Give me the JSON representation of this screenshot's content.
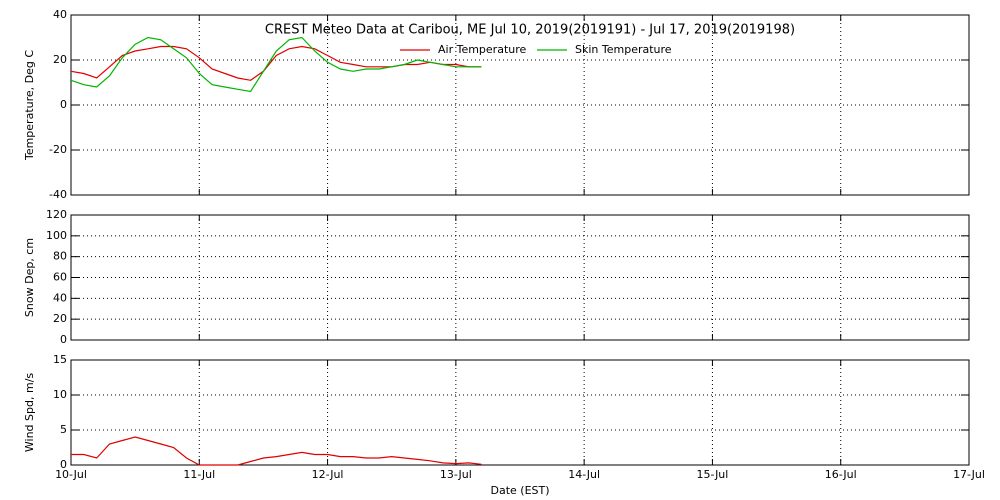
{
  "chart_data": [
    {
      "type": "line",
      "title": "CREST Meteo Data at Caribou, ME   Jul 10, 2019(2019191) - Jul 17, 2019(2019198)",
      "y_label": "Temperature, Deg C",
      "xlim": [
        0,
        7
      ],
      "ylim": [
        -40,
        40
      ],
      "yticks": [
        -40,
        -20,
        0,
        20,
        40
      ],
      "grid": true,
      "x": [
        0,
        0.1,
        0.2,
        0.3,
        0.4,
        0.5,
        0.6,
        0.7,
        0.8,
        0.9,
        1.0,
        1.1,
        1.2,
        1.3,
        1.4,
        1.5,
        1.6,
        1.7,
        1.8,
        1.9,
        2.0,
        2.1,
        2.2,
        2.3,
        2.4,
        2.5,
        2.6,
        2.7,
        2.8,
        2.9,
        3.0,
        3.1,
        3.2
      ],
      "series": [
        {
          "name": "Air Temperature",
          "color": "#e00000",
          "values": [
            15,
            14,
            12,
            17,
            22,
            24,
            25,
            26,
            26,
            25,
            21,
            16,
            14,
            12,
            11,
            15,
            22,
            25,
            26,
            25,
            22,
            19,
            18,
            17,
            17,
            17,
            18,
            18,
            19,
            18,
            18,
            17,
            17
          ]
        },
        {
          "name": "Skin Temperature",
          "color": "#00b400",
          "values": [
            11,
            9,
            8,
            13,
            21,
            27,
            30,
            29,
            25,
            21,
            14,
            9,
            8,
            7,
            6,
            15,
            24,
            29,
            30,
            24,
            19,
            16,
            15,
            16,
            16,
            17,
            18,
            20,
            19,
            18,
            17,
            17,
            17
          ]
        }
      ]
    },
    {
      "type": "line",
      "y_label": "Snow Dep, cm",
      "xlim": [
        0,
        7
      ],
      "ylim": [
        0,
        120
      ],
      "yticks": [
        0,
        20,
        40,
        60,
        80,
        100,
        120
      ],
      "grid": true,
      "series": []
    },
    {
      "type": "line",
      "y_label": "Wind Spd, m/s",
      "x_label": "Date (EST)",
      "xlim": [
        0,
        7
      ],
      "xticks": [
        {
          "value": 0,
          "label": "10-Jul"
        },
        {
          "value": 1,
          "label": "11-Jul"
        },
        {
          "value": 2,
          "label": "12-Jul"
        },
        {
          "value": 3,
          "label": "13-Jul"
        },
        {
          "value": 4,
          "label": "14-Jul"
        },
        {
          "value": 5,
          "label": "15-Jul"
        },
        {
          "value": 6,
          "label": "16-Jul"
        },
        {
          "value": 7,
          "label": "17-Jul"
        }
      ],
      "ylim": [
        0,
        15
      ],
      "yticks": [
        0,
        5,
        10,
        15
      ],
      "grid": true,
      "x": [
        0,
        0.1,
        0.2,
        0.3,
        0.4,
        0.5,
        0.6,
        0.7,
        0.8,
        0.9,
        1.0,
        1.1,
        1.2,
        1.3,
        1.4,
        1.5,
        1.6,
        1.7,
        1.8,
        1.9,
        2.0,
        2.1,
        2.2,
        2.3,
        2.4,
        2.5,
        2.6,
        2.7,
        2.8,
        2.9,
        3.0,
        3.1,
        3.2
      ],
      "series": [
        {
          "color": "#e00000",
          "values": [
            1.5,
            1.5,
            1,
            3,
            3.5,
            4,
            3.5,
            3,
            2.5,
            1,
            0,
            0,
            0,
            0,
            0.5,
            1,
            1.2,
            1.5,
            1.8,
            1.5,
            1.5,
            1.2,
            1.2,
            1.0,
            1.0,
            1.2,
            1,
            0.8,
            0.6,
            0.3,
            0.2,
            0.3,
            0.1
          ]
        }
      ]
    }
  ]
}
